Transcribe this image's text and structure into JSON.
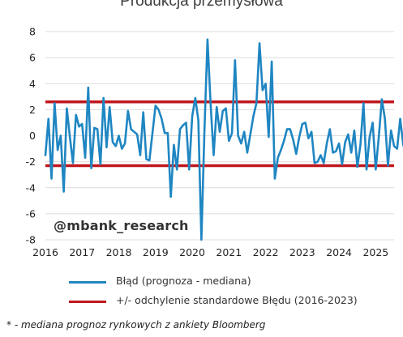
{
  "chart_data": {
    "type": "line",
    "title": "Produkcja przemysłowa",
    "xlabel": "",
    "ylabel": "",
    "ylim": [
      -8,
      8
    ],
    "yticks": [
      -8,
      -6,
      -4,
      -2,
      0,
      2,
      4,
      6,
      8
    ],
    "xlim": [
      2016.0,
      2025.5
    ],
    "xtick_labels": [
      "2016",
      "2017",
      "2018",
      "2019",
      "2020",
      "2021",
      "2022",
      "2023",
      "2024",
      "2025"
    ],
    "grid": "horizontal",
    "legend_position": "bottom",
    "colors": {
      "series": "#1f86c2",
      "bands": "#c0171d",
      "grid": "#dcdcdc"
    },
    "series": [
      {
        "name": "Błąd (prognoza - mediana)",
        "x_start": "2016-01",
        "frequency": "monthly",
        "values": [
          -1.5,
          1.3,
          -3.3,
          2.5,
          -1.1,
          0.0,
          -4.3,
          2.1,
          -0.1,
          -2.1,
          1.6,
          0.7,
          0.9,
          -1.7,
          3.7,
          -2.5,
          0.6,
          0.5,
          -2.2,
          2.9,
          -0.9,
          2.2,
          -0.5,
          -0.8,
          0.0,
          -1.0,
          -0.6,
          1.9,
          0.5,
          0.3,
          0.1,
          -1.5,
          1.8,
          -1.8,
          -1.9,
          0.2,
          2.3,
          2.0,
          1.3,
          0.2,
          0.2,
          -4.7,
          -0.7,
          -2.6,
          0.5,
          0.8,
          1.0,
          -2.6,
          1.5,
          2.9,
          1.2,
          -8.0,
          0.4,
          7.4,
          2.5,
          -1.5,
          2.2,
          0.3,
          1.9,
          2.1,
          -0.4,
          0.2,
          5.8,
          0.0,
          -0.6,
          0.3,
          -1.3,
          0.1,
          1.5,
          2.5,
          7.1,
          3.5,
          4.0,
          -0.1,
          5.7,
          -3.3,
          -1.7,
          -1.1,
          -0.4,
          0.5,
          0.5,
          -0.3,
          -1.4,
          -0.1,
          0.9,
          1.0,
          -0.2,
          0.3,
          -2.1,
          -2.0,
          -1.5,
          -2.1,
          -0.6,
          0.5,
          -1.3,
          -1.2,
          -0.6,
          -2.2,
          -0.5,
          0.1,
          -1.3,
          0.4,
          -2.4,
          -0.7,
          2.5,
          -2.6,
          -0.1,
          1.0,
          -2.6,
          -0.1,
          2.8,
          1.3,
          -2.3,
          0.4,
          -0.8,
          -1.0,
          1.3,
          -0.7,
          -1.5
        ]
      },
      {
        "name": "+/- odchylenie standardowe Błędu (2016-2023)",
        "values": [
          2.6,
          -2.3
        ]
      }
    ],
    "annotations": [
      "@mbank_research"
    ]
  },
  "legend": {
    "series_label": "Błąd (prognoza - mediana)",
    "band_label": "+/- odchylenie standardowe Błędu (2016-2023)"
  },
  "footnote": "* - mediana prognoz rynkowych z ankiety Bloomberg"
}
